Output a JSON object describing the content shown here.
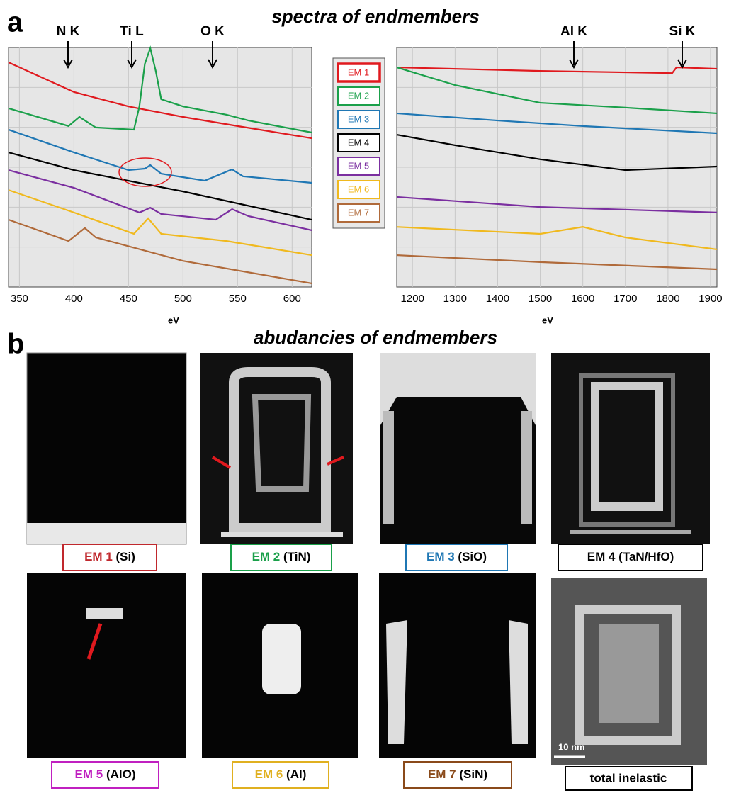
{
  "panel_labels": [
    "a",
    "b"
  ],
  "figure_a_title": "spectra of endmembers",
  "chart_data": [
    {
      "type": "line",
      "x_label": "eV",
      "xlim": [
        340,
        618
      ],
      "ylim": [
        0,
        100
      ],
      "xticks": [
        350,
        400,
        450,
        500,
        550,
        600
      ],
      "grid": true,
      "annotations": [
        "N K",
        "Ti L",
        "O K"
      ],
      "series": [
        {
          "name": "EM 1",
          "color": "#e0191e",
          "x": [
            340,
            400,
            450,
            500,
            550,
            618
          ],
          "values": [
            93.8,
            81.4,
            75.4,
            71,
            67.2,
            62.1
          ]
        },
        {
          "name": "EM 2",
          "color": "#1aa04a",
          "x": [
            340,
            395,
            405,
            420,
            455,
            460,
            465,
            470,
            475,
            480,
            500,
            540,
            560,
            618
          ],
          "values": [
            74.6,
            67.2,
            71,
            66.6,
            65.7,
            75.4,
            93.2,
            99.7,
            90.2,
            78.4,
            75.4,
            71.9,
            69.5,
            64.5
          ]
        },
        {
          "name": "EM 3",
          "color": "#1f77b4",
          "x": [
            340,
            400,
            450,
            465,
            470,
            480,
            520,
            545,
            555,
            618
          ],
          "values": [
            65.7,
            56.2,
            48.8,
            49.4,
            50.9,
            47.3,
            44.4,
            49.1,
            46.2,
            43.5
          ]
        },
        {
          "name": "EM 4",
          "color": "#000000",
          "x": [
            340,
            400,
            500,
            618
          ],
          "values": [
            56.2,
            48.8,
            39.9,
            28.1
          ]
        },
        {
          "name": "EM 5",
          "color": "#7b2fa0",
          "x": [
            340,
            400,
            460,
            470,
            480,
            530,
            545,
            560,
            618
          ],
          "values": [
            48.8,
            41.4,
            31.1,
            33.1,
            30.5,
            28.1,
            32.5,
            29.6,
            23.7
          ]
        },
        {
          "name": "EM 6",
          "color": "#f0b91e",
          "x": [
            340,
            400,
            455,
            468,
            480,
            540,
            618
          ],
          "values": [
            40.5,
            31.1,
            22.2,
            28.7,
            22.2,
            19.2,
            13.3
          ]
        },
        {
          "name": "EM 7",
          "color": "#b06a3a",
          "x": [
            340,
            395,
            410,
            420,
            500,
            618
          ],
          "values": [
            28.1,
            19.2,
            24.6,
            20.7,
            10.9,
            1.5
          ]
        }
      ]
    },
    {
      "type": "line",
      "x_label": "eV",
      "xlim": [
        1163,
        1915
      ],
      "ylim": [
        0,
        100
      ],
      "xticks": [
        1200,
        1300,
        1400,
        1500,
        1600,
        1700,
        1800,
        1900
      ],
      "grid": true,
      "annotations": [
        "Al K",
        "Si K"
      ],
      "series": [
        {
          "color": "#e0191e",
          "x": [
            1163,
            1500,
            1810,
            1820,
            1915
          ],
          "values": [
            91.7,
            90.2,
            89.3,
            91.7,
            91.1
          ]
        },
        {
          "color": "#1aa04a",
          "x": [
            1163,
            1300,
            1500,
            1700,
            1915
          ],
          "values": [
            91.7,
            84.3,
            76.9,
            74.9,
            72.5
          ]
        },
        {
          "color": "#1f77b4",
          "x": [
            1163,
            1400,
            1600,
            1915
          ],
          "values": [
            72.5,
            69.5,
            67.2,
            64.2
          ]
        },
        {
          "color": "#000000",
          "x": [
            1163,
            1300,
            1500,
            1700,
            1915
          ],
          "values": [
            63.6,
            59.2,
            53.3,
            48.8,
            50.3
          ]
        },
        {
          "color": "#7b2fa0",
          "x": [
            1163,
            1500,
            1915
          ],
          "values": [
            37.6,
            33.4,
            31.1
          ]
        },
        {
          "color": "#f0b91e",
          "x": [
            1163,
            1500,
            1600,
            1700,
            1915
          ],
          "values": [
            25.1,
            22.2,
            25.1,
            20.7,
            15.7
          ]
        },
        {
          "color": "#b06a3a",
          "x": [
            1163,
            1500,
            1915
          ],
          "values": [
            13.3,
            10.4,
            7.4
          ]
        }
      ]
    }
  ],
  "figure_b": {
    "title": "abudancies of endmembers",
    "panels": [
      {
        "em": "EM 1",
        "material": "(Si)",
        "color": "#c0282d"
      },
      {
        "em": "EM 2",
        "material": "(TiN)",
        "color": "#1aa04a"
      },
      {
        "em": "EM 3",
        "material": "(SiO)",
        "color": "#1f77b4"
      },
      {
        "em": "EM 4",
        "material": "(TaN/HfO)",
        "color": "#000000"
      },
      {
        "em": "EM 5",
        "material": "(AlO)",
        "color": "#c020c0"
      },
      {
        "em": "EM 6",
        "material": "(Al)",
        "color": "#e0b020"
      },
      {
        "em": "EM 7",
        "material": "(SiN)",
        "color": "#8a4a1a"
      }
    ],
    "total": "total inelastic",
    "scale_bar": "10 nm"
  }
}
